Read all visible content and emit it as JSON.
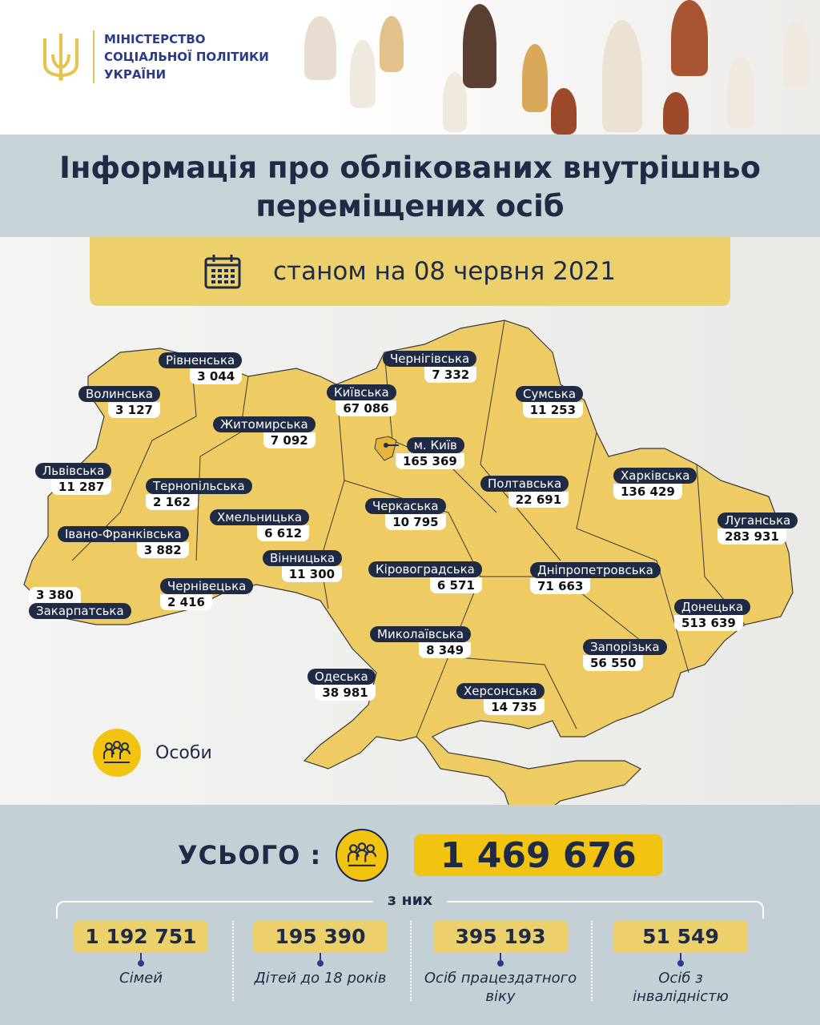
{
  "header": {
    "ministry_lines": [
      "МІНІСТЕРСТВО",
      "СОЦІАЛЬНОЇ ПОЛІТИКИ",
      "УКРАЇНИ"
    ]
  },
  "title": {
    "line1": "Інформація про облікованих внутрішньо",
    "line2": "переміщених осіб"
  },
  "date": {
    "icon": "calendar-icon",
    "text": "станом на 08 червня 2021"
  },
  "colors": {
    "map": "#EECB63",
    "label_bg": "#1F2A44",
    "accent": "#F2C411",
    "navy": "#1E2A46"
  },
  "regions": [
    {
      "name": "Рівненська",
      "value": "3 044"
    },
    {
      "name": "Волинська",
      "value": "3 127"
    },
    {
      "name": "Житомирська",
      "value": "7 092"
    },
    {
      "name": "Київська",
      "value": "67 086"
    },
    {
      "name": "Чернігівська",
      "value": "7 332"
    },
    {
      "name": "Сумська",
      "value": "11 253"
    },
    {
      "name": "м. Київ",
      "value": "165 369"
    },
    {
      "name": "Львівська",
      "value": "11 287"
    },
    {
      "name": "Тернопільська",
      "value": "2 162"
    },
    {
      "name": "Хмельницька",
      "value": "6 612"
    },
    {
      "name": "Полтавська",
      "value": "22 691"
    },
    {
      "name": "Харківська",
      "value": "136 429"
    },
    {
      "name": "Черкаська",
      "value": "10 795"
    },
    {
      "name": "Луганська",
      "value": "283 931"
    },
    {
      "name": "Івано-Франківська",
      "value": "3 882"
    },
    {
      "name": "Вінницька",
      "value": "11 300"
    },
    {
      "name": "Кіровоградська",
      "value": "6 571"
    },
    {
      "name": "Дніпропетровська",
      "value": "71 663"
    },
    {
      "name": "Чернівецька",
      "value": "2 416"
    },
    {
      "name": "Закарпатська",
      "value": "3 380"
    },
    {
      "name": "Донецька",
      "value": "513 639"
    },
    {
      "name": "Миколаївська",
      "value": "8 349"
    },
    {
      "name": "Запорізька",
      "value": "56 550"
    },
    {
      "name": "Одеська",
      "value": "38 981"
    },
    {
      "name": "Херсонська",
      "value": "14 735"
    }
  ],
  "legend": {
    "icon": "people-group-icon",
    "label": "Особи"
  },
  "total": {
    "label": "УСЬОГО :",
    "value": "1 469 676"
  },
  "of_them": "з них",
  "stats": [
    {
      "value": "1 192 751",
      "caption": "Сімей"
    },
    {
      "value": "195 390",
      "caption": "Дітей до 18 років"
    },
    {
      "value": "395 193",
      "caption": "Осіб працездатного віку"
    },
    {
      "value": "51 549",
      "caption": "Осіб з інвалідністю"
    }
  ]
}
